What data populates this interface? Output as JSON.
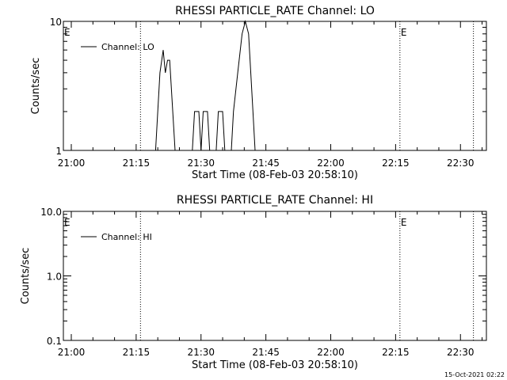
{
  "chart_data": [
    {
      "type": "line",
      "title": "RHESSI PARTICLE_RATE Channel: LO",
      "xlabel": "Start Time (08-Feb-03 20:58:10)",
      "ylabel": "Counts/sec",
      "yscale": "log",
      "ylim": [
        1,
        10
      ],
      "xlim": [
        "20:58:10",
        "22:36:00"
      ],
      "x_ticks": [
        "21:00",
        "21:15",
        "21:30",
        "21:45",
        "22:00",
        "22:15",
        "22:30"
      ],
      "y_ticks": [
        "1",
        "10"
      ],
      "legend": {
        "position": "top-left",
        "entries": [
          "Channel: LO"
        ]
      },
      "markers": [
        {
          "time": "20:58:10",
          "label": "E"
        },
        {
          "time": "21:16:00",
          "label": ""
        },
        {
          "time": "22:16:00",
          "label": "E"
        },
        {
          "time": "22:33:00",
          "label": ""
        }
      ],
      "series": [
        {
          "name": "Channel: LO",
          "points": [
            [
              "21:19:30",
              1
            ],
            [
              "21:20:30",
              4
            ],
            [
              "21:21:15",
              6
            ],
            [
              "21:21:45",
              4
            ],
            [
              "21:22:15",
              5
            ],
            [
              "21:22:45",
              5
            ],
            [
              "21:24:00",
              1
            ],
            [
              "21:28:00",
              1
            ],
            [
              "21:28:30",
              2
            ],
            [
              "21:29:30",
              2
            ],
            [
              "21:30:00",
              1
            ],
            [
              "21:30:30",
              2
            ],
            [
              "21:31:30",
              2
            ],
            [
              "21:32:00",
              1
            ],
            [
              "21:33:30",
              1
            ],
            [
              "21:34:00",
              2
            ],
            [
              "21:35:00",
              2
            ],
            [
              "21:35:30",
              1
            ],
            [
              "21:37:00",
              1
            ],
            [
              "21:37:30",
              2
            ],
            [
              "21:38:30",
              4
            ],
            [
              "21:39:30",
              8
            ],
            [
              "21:40:15",
              10
            ],
            [
              "21:41:00",
              8
            ],
            [
              "21:42:00",
              2
            ],
            [
              "21:42:30",
              1
            ]
          ]
        }
      ]
    },
    {
      "type": "line",
      "title": "RHESSI PARTICLE_RATE Channel: HI",
      "xlabel": "Start Time (08-Feb-03 20:58:10)",
      "ylabel": "Counts/sec",
      "yscale": "log",
      "ylim": [
        0.1,
        10
      ],
      "xlim": [
        "20:58:10",
        "22:36:00"
      ],
      "x_ticks": [
        "21:00",
        "21:15",
        "21:30",
        "21:45",
        "22:00",
        "22:15",
        "22:30"
      ],
      "y_ticks": [
        "0.1",
        "1.0",
        "10.0"
      ],
      "legend": {
        "position": "top-left",
        "entries": [
          "Channel: HI"
        ]
      },
      "markers": [
        {
          "time": "20:58:10",
          "label": "E"
        },
        {
          "time": "21:16:00",
          "label": ""
        },
        {
          "time": "22:16:00",
          "label": "E"
        },
        {
          "time": "22:33:00",
          "label": ""
        }
      ],
      "series": [
        {
          "name": "Channel: HI",
          "points": []
        }
      ]
    }
  ],
  "footer": {
    "timestamp": "15-Oct-2021 02:22"
  }
}
